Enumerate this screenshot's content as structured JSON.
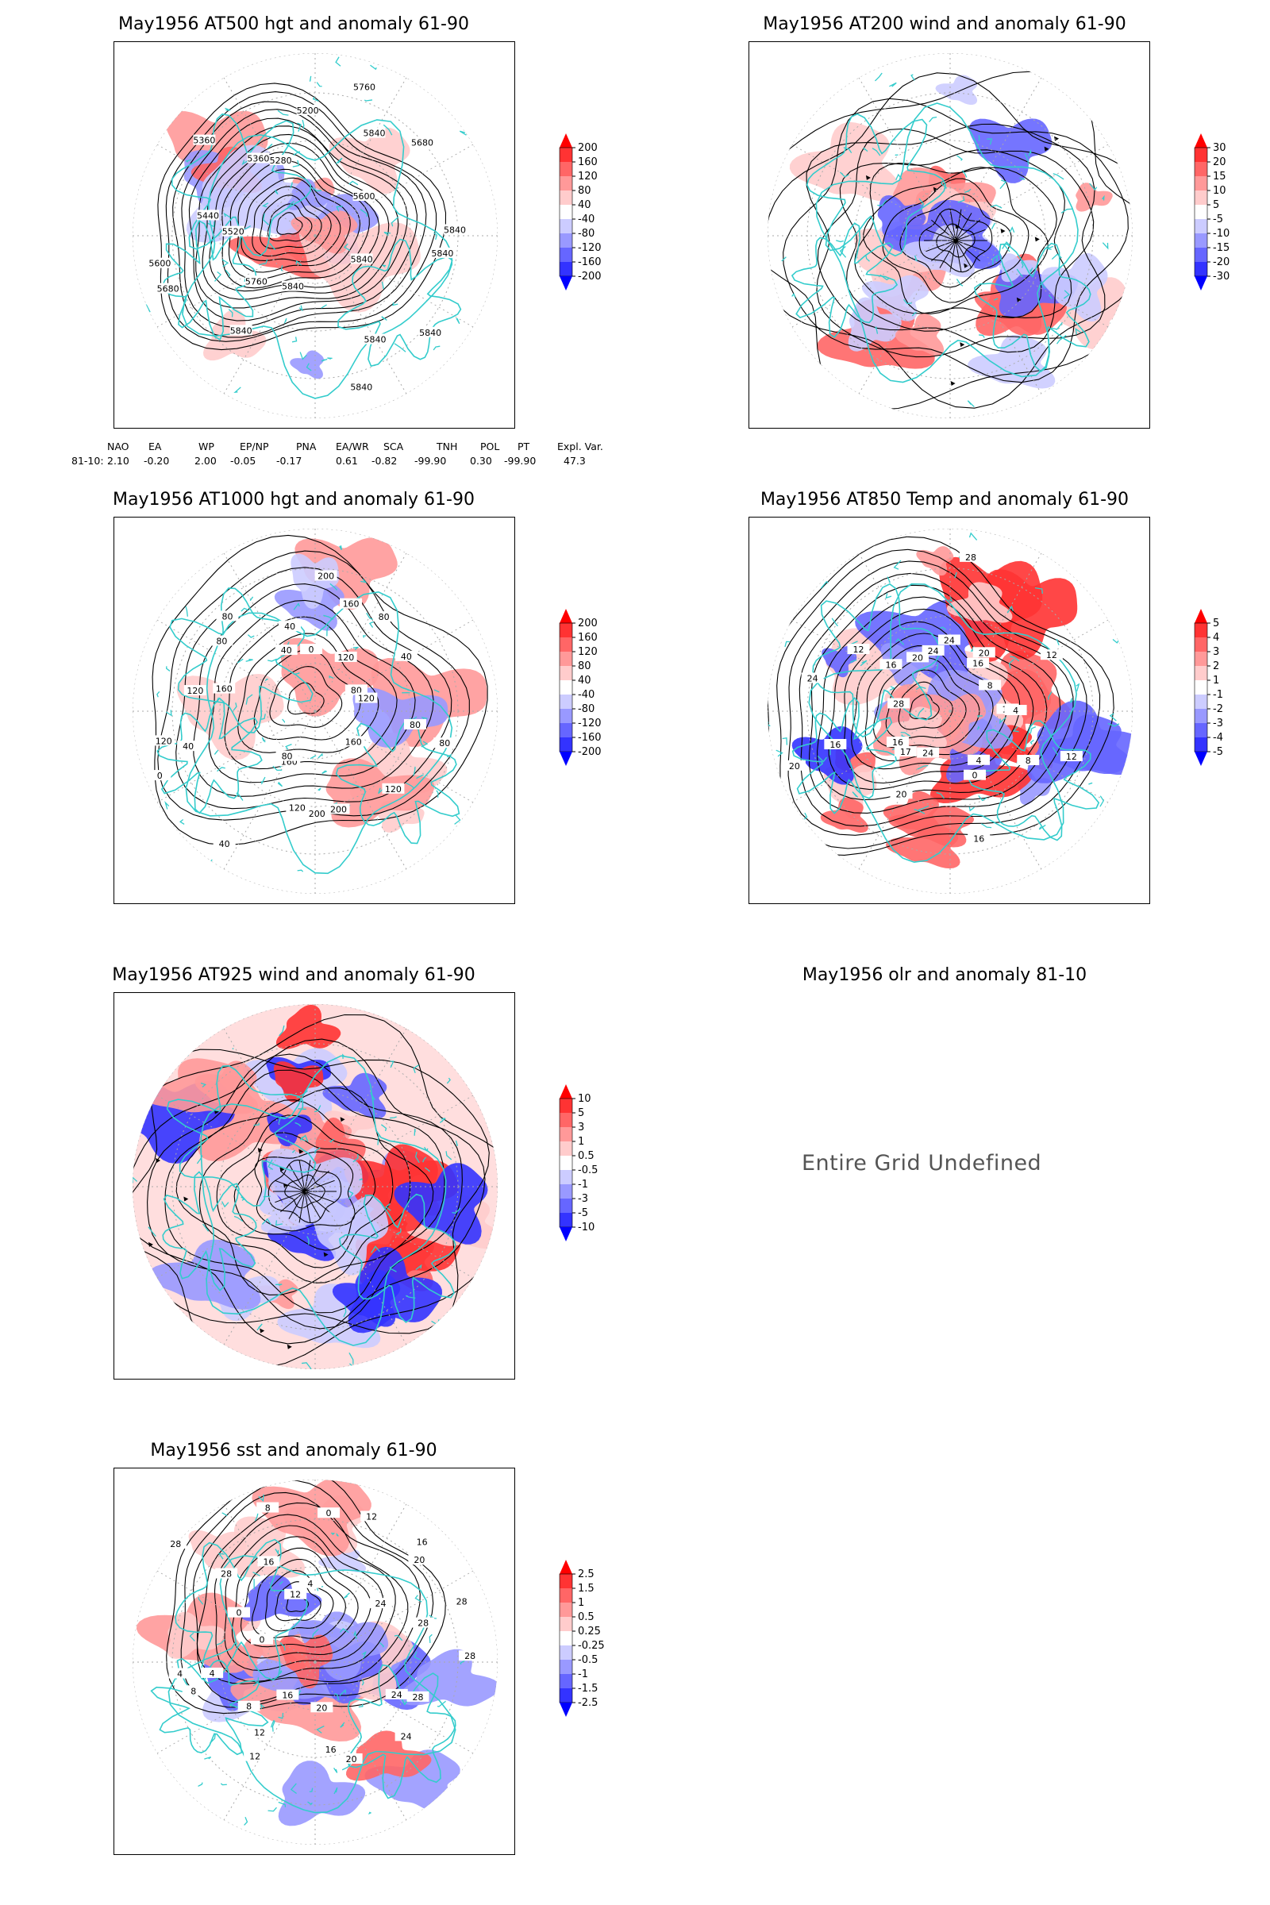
{
  "panels": [
    {
      "id": "at500",
      "title": "May1956 AT500 hgt and anomaly 61-90",
      "contour_labels": [
        "5840",
        "5840",
        "5840",
        "5840",
        "5840",
        "5840",
        "5840",
        "5760",
        "5680",
        "5600",
        "5520",
        "5440",
        "5360",
        "5360",
        "5280",
        "5200",
        "5760",
        "5840",
        "5680",
        "5600",
        "5840"
      ],
      "colorbar": [
        "200",
        "160",
        "120",
        "80",
        "40",
        "-40",
        "-80",
        "-120",
        "-160",
        "-200"
      ]
    },
    {
      "id": "at200",
      "title": "May1956 AT200 wind and anomaly 61-90",
      "colorbar": [
        "30",
        "20",
        "15",
        "10",
        "5",
        "-5",
        "-10",
        "-15",
        "-20",
        "-30"
      ]
    },
    {
      "id": "at1000",
      "title": "May1956 AT1000 hgt and anomaly 61-90",
      "contour_labels": [
        "80",
        "80",
        "120",
        "160",
        "200",
        "200",
        "120",
        "160",
        "80",
        "40",
        "0",
        "40",
        "120",
        "160",
        "120",
        "80",
        "80",
        "40",
        "40",
        "0",
        "200",
        "160",
        "120",
        "80",
        "40",
        "80",
        "120"
      ],
      "colorbar": [
        "200",
        "160",
        "120",
        "80",
        "40",
        "-40",
        "-80",
        "-120",
        "-160",
        "-200"
      ]
    },
    {
      "id": "at850",
      "title": "May1956 AT850 Temp and anomaly 61-90",
      "contour_labels": [
        "16",
        "12",
        "8",
        "4",
        "0",
        "16",
        "24",
        "20",
        "17",
        "16",
        "16",
        "20",
        "24",
        "28",
        "12",
        "16",
        "20",
        "24",
        "28",
        "24",
        "20",
        "16",
        "12",
        "8",
        "4"
      ],
      "colorbar": [
        "5",
        "4",
        "3",
        "2",
        "1",
        "-1",
        "-2",
        "-3",
        "-4",
        "-5"
      ]
    },
    {
      "id": "at925",
      "title": "May1956 AT925 wind and anomaly 61-90",
      "colorbar": [
        "10",
        "5",
        "3",
        "1",
        "0.5",
        "-0.5",
        "-1",
        "-3",
        "-5",
        "-10"
      ]
    },
    {
      "id": "olr",
      "title": "May1956 olr and anomaly 81-10",
      "message": "Entire Grid Undefined"
    },
    {
      "id": "sst",
      "title": "May1956 sst and anomaly 61-90",
      "contour_labels": [
        "28",
        "28",
        "24",
        "24",
        "20",
        "20",
        "16",
        "16",
        "12",
        "12",
        "8",
        "8",
        "4",
        "4",
        "0",
        "0",
        "28",
        "28",
        "16",
        "12",
        "8",
        "4",
        "0",
        "12",
        "16",
        "20",
        "24",
        "28",
        "28"
      ],
      "colorbar": [
        "2.5",
        "1.5",
        "1",
        "0.5",
        "0.25",
        "-0.25",
        "-0.5",
        "-1",
        "-1.5",
        "-2.5"
      ]
    }
  ],
  "teleconnection": {
    "headers": [
      "NAO",
      "EA",
      "WP",
      "EP/NP",
      "PNA",
      "EA/WR",
      "SCA",
      "TNH",
      "POL",
      "PT",
      "Expl. Var."
    ],
    "row_label": "81-10:",
    "values": [
      "2.10",
      "-0.20",
      "2.00",
      "-0.05",
      "-0.17",
      "0.61",
      "-0.82",
      "-99.90",
      "0.30",
      "-99.90",
      "47.3"
    ]
  },
  "colors": {
    "land_outline": "#33cccc",
    "contour": "#000000",
    "positive_anom": [
      "#ff0000",
      "#ff3333",
      "#ff6666",
      "#ff9999",
      "#ffcccc"
    ],
    "negative_anom": [
      "#ccccff",
      "#9999ff",
      "#6666ff",
      "#3333ff",
      "#0000ff"
    ]
  }
}
